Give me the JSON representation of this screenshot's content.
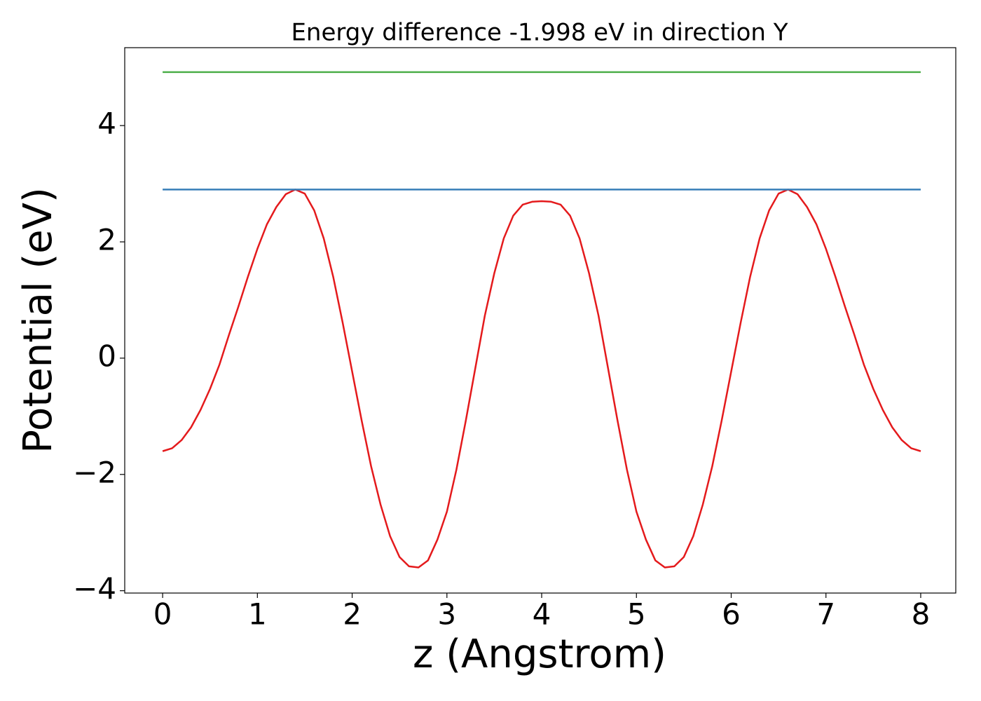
{
  "chart_data": {
    "type": "line",
    "title": "Energy difference -1.998 eV in direction Y",
    "x_label": "z (Angstrom)",
    "y_label": "Potential (eV)",
    "xlim": [
      -0.4,
      8.37
    ],
    "ylim": [
      -4.04,
      5.34
    ],
    "xticks": [
      0,
      1,
      2,
      3,
      4,
      5,
      6,
      7,
      8
    ],
    "yticks": [
      {
        "value": -4,
        "label": "−4"
      },
      {
        "value": -2,
        "label": "−2"
      },
      0,
      2,
      4
    ],
    "grid": false,
    "series": [
      {
        "color": "#e41a1c",
        "x": [
          0,
          0.1,
          0.2,
          0.3,
          0.4,
          0.5,
          0.6,
          0.7,
          0.8,
          0.9,
          1,
          1.1,
          1.2,
          1.3,
          1.4,
          1.5,
          1.6,
          1.7,
          1.8,
          1.9,
          2,
          2.1,
          2.2,
          2.3,
          2.4,
          2.5,
          2.6,
          2.7,
          2.8,
          2.9,
          3,
          3.1,
          3.2,
          3.3,
          3.4,
          3.5,
          3.6,
          3.7,
          3.8,
          3.9,
          4,
          4.1,
          4.2,
          4.3,
          4.4,
          4.5,
          4.6,
          4.7,
          4.8,
          4.9,
          5,
          5.1,
          5.2,
          5.3,
          5.4,
          5.5,
          5.6,
          5.7,
          5.8,
          5.9,
          6,
          6.1,
          6.2,
          6.3,
          6.4,
          6.5,
          6.6,
          6.7,
          6.8,
          6.9,
          7,
          7.1,
          7.2,
          7.3,
          7.4,
          7.5,
          7.6,
          7.7,
          7.8,
          7.9,
          8
        ],
        "values": [
          -1.6,
          -1.55,
          -1.41,
          -1.19,
          -0.89,
          -0.53,
          -0.11,
          0.4,
          0.89,
          1.4,
          1.88,
          2.3,
          2.6,
          2.82,
          2.9,
          2.83,
          2.54,
          2.06,
          1.4,
          0.61,
          -0.23,
          -1.07,
          -1.86,
          -2.52,
          -3.06,
          -3.42,
          -3.58,
          -3.6,
          -3.48,
          -3.12,
          -2.64,
          -1.92,
          -1.07,
          -0.17,
          0.73,
          1.46,
          2.06,
          2.45,
          2.64,
          2.69,
          2.7,
          2.69,
          2.64,
          2.45,
          2.06,
          1.46,
          0.73,
          -0.17,
          -1.07,
          -1.92,
          -2.64,
          -3.12,
          -3.48,
          -3.6,
          -3.58,
          -3.42,
          -3.06,
          -2.52,
          -1.86,
          -1.07,
          -0.23,
          0.61,
          1.4,
          2.06,
          2.54,
          2.83,
          2.9,
          2.82,
          2.6,
          2.3,
          1.88,
          1.4,
          0.89,
          0.4,
          -0.11,
          -0.53,
          -0.89,
          -1.19,
          -1.41,
          -1.55,
          -1.6
        ]
      },
      {
        "color": "#377eb8",
        "x": [
          0,
          8
        ],
        "values": [
          2.9,
          2.9
        ]
      },
      {
        "color": "#4daf4a",
        "x": [
          0,
          8
        ],
        "values": [
          4.92,
          4.92
        ]
      }
    ]
  }
}
